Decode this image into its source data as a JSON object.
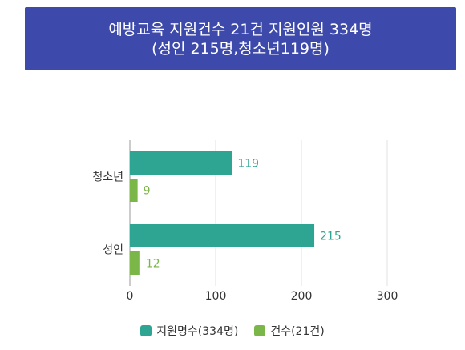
{
  "title": {
    "line1": "예방교육 지원건수 21건 지원인원 334명",
    "line2": "(성인 215명,청소년119명)"
  },
  "colors": {
    "people": "#2ea592",
    "cases": "#7ab648",
    "header_bg": "#3d4aab"
  },
  "chart_data": {
    "type": "bar",
    "orientation": "horizontal",
    "categories": [
      "청소년",
      "성인"
    ],
    "series": [
      {
        "name": "지원명수(334명)",
        "values": [
          119,
          215
        ],
        "color": "#2ea592"
      },
      {
        "name": "건수(21건)",
        "values": [
          9,
          12
        ],
        "color": "#7ab648"
      }
    ],
    "xlim": [
      0,
      300
    ],
    "xticks": [
      0,
      100,
      200,
      300
    ],
    "grid": true,
    "legend_position": "bottom"
  },
  "legend": {
    "people_label": "지원명수(334명)",
    "cases_label": "건수(21건)"
  }
}
